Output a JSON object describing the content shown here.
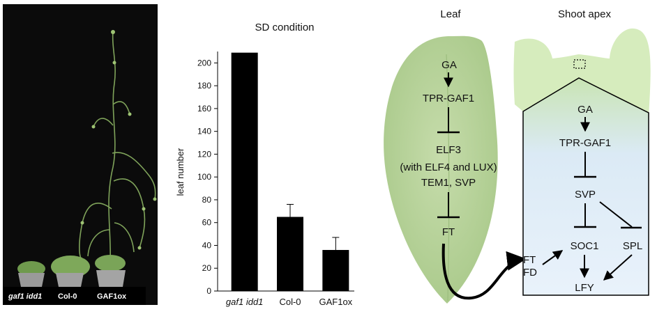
{
  "photo": {
    "labels": [
      "gaf1 idd1",
      "Col-0",
      "GAF1ox"
    ]
  },
  "chart_data": {
    "type": "bar",
    "title": "SD condition",
    "ylabel": "leaf number",
    "xlabel": "",
    "categories": [
      "gaf1 idd1",
      "Col-0",
      "GAF1ox"
    ],
    "values": [
      209,
      65,
      36
    ],
    "errors": [
      0,
      11,
      11
    ],
    "ylim": [
      0,
      210
    ],
    "yticks": [
      0,
      20,
      40,
      60,
      80,
      100,
      120,
      140,
      160,
      180,
      200
    ],
    "grid": false,
    "colors": {
      "bar": "#000000"
    }
  },
  "diagram": {
    "leaf": {
      "title": "Leaf",
      "ga": "GA",
      "tpr": "TPR-GAF1",
      "elf3": "ELF3",
      "with": "(with ELF4 and LUX)",
      "tem1": "TEM1, SVP",
      "ft": "FT"
    },
    "apex": {
      "title": "Shoot apex",
      "ga": "GA",
      "tpr": "TPR-GAF1",
      "svp": "SVP",
      "soc1": "SOC1",
      "spl": "SPL",
      "lfy": "LFY",
      "ft": "FT",
      "fd": "FD"
    },
    "colors": {
      "leaf": "#b9d49a",
      "apex_green": "#d9efc0",
      "apex_blue": "#e8f1fb"
    }
  }
}
